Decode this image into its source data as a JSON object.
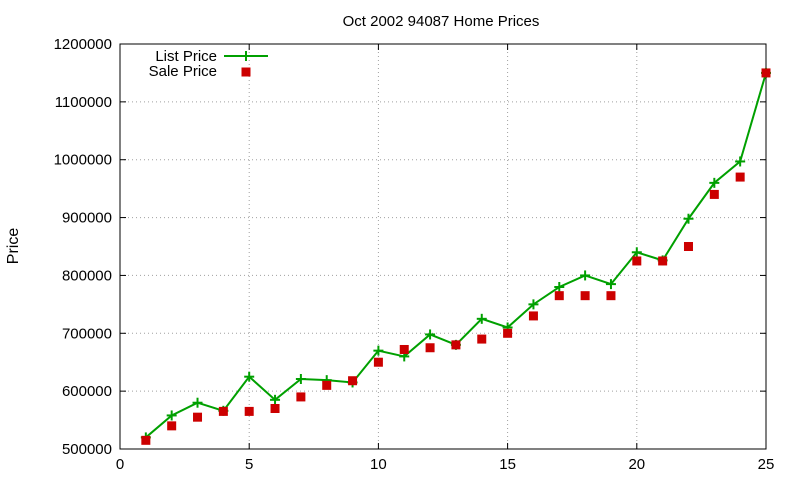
{
  "chart_data": {
    "type": "line",
    "title": "Oct 2002 94087 Home Prices",
    "xlabel": "",
    "ylabel": "Price",
    "xlim": [
      0,
      25
    ],
    "ylim": [
      500000,
      1200000
    ],
    "xticks": [
      "0",
      "5",
      "10",
      "15",
      "20",
      "25"
    ],
    "yticks": [
      "500000",
      "600000",
      "700000",
      "800000",
      "900000",
      "1000000",
      "1100000",
      "1200000"
    ],
    "grid": true,
    "legend_position": "top-left",
    "x": [
      1,
      2,
      3,
      4,
      5,
      6,
      7,
      8,
      9,
      10,
      11,
      12,
      13,
      14,
      15,
      16,
      17,
      18,
      19,
      20,
      21,
      22,
      23,
      24,
      25
    ],
    "series": [
      {
        "name": "List Price",
        "style": "line+cross",
        "color": "#00a000",
        "values": [
          520000,
          558000,
          580000,
          566000,
          625000,
          585000,
          621000,
          619000,
          615000,
          670000,
          660000,
          698000,
          680000,
          725000,
          710000,
          750000,
          780000,
          800000,
          785000,
          840000,
          826000,
          898000,
          960000,
          997000,
          1150000
        ]
      },
      {
        "name": "Sale Price",
        "style": "square",
        "color": "#cc0000",
        "values": [
          515000,
          540000,
          555000,
          565000,
          565000,
          570000,
          590000,
          610000,
          618000,
          650000,
          672000,
          675000,
          680000,
          690000,
          700000,
          730000,
          765000,
          765000,
          765000,
          825000,
          825000,
          850000,
          940000,
          970000,
          1150000
        ]
      }
    ]
  }
}
